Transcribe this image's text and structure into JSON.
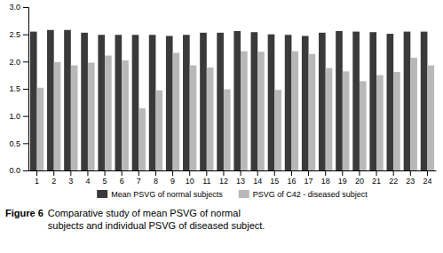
{
  "chart_data": {
    "type": "bar",
    "title": "Figure 6",
    "subtitle": "Comparative study of mean PSVG of normal\nsubjects and individual PSVG of diseased subject.",
    "categories": [
      1,
      2,
      3,
      4,
      5,
      6,
      7,
      8,
      9,
      10,
      11,
      12,
      13,
      14,
      15,
      16,
      17,
      18,
      19,
      20,
      21,
      22,
      23,
      24
    ],
    "series": [
      {
        "name": "Mean PSVG of normal subjects",
        "color": "#3a3a3a",
        "values": [
          2.55,
          2.58,
          2.58,
          2.53,
          2.49,
          2.49,
          2.49,
          2.49,
          2.47,
          2.49,
          2.53,
          2.53,
          2.56,
          2.54,
          2.5,
          2.49,
          2.47,
          2.53,
          2.56,
          2.55,
          2.54,
          2.51,
          2.55,
          2.55
        ]
      },
      {
        "name": "PSVG of C42 - diseased subject",
        "color": "#b8b8b8",
        "values": [
          1.52,
          1.99,
          1.93,
          1.98,
          2.11,
          2.02,
          1.14,
          1.47,
          2.16,
          1.93,
          1.89,
          1.49,
          2.19,
          2.18,
          1.48,
          2.19,
          2.14,
          1.88,
          1.82,
          1.64,
          1.75,
          1.81,
          2.07,
          1.93
        ]
      }
    ],
    "ylim": [
      0,
      3
    ],
    "yticks": [
      {
        "value": 0,
        "label": "0.0"
      },
      0.5,
      {
        "value": 1,
        "label": "1.0"
      },
      1.5,
      {
        "value": 2,
        "label": "2.0"
      },
      2.5,
      {
        "value": 3,
        "label": "3.0"
      }
    ],
    "grid": false,
    "legend": "bottom"
  }
}
